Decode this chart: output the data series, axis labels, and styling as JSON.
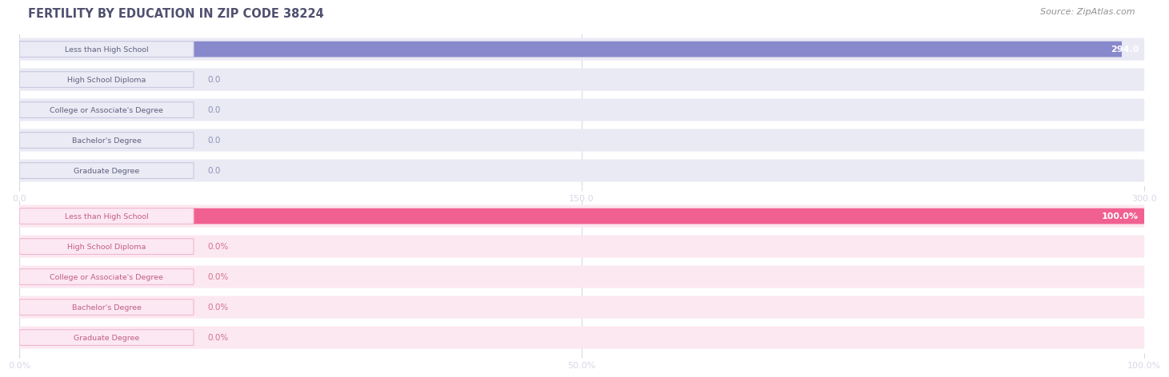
{
  "title": "FERTILITY BY EDUCATION IN ZIP CODE 38224",
  "source": "Source: ZipAtlas.com",
  "categories": [
    "Less than High School",
    "High School Diploma",
    "College or Associate's Degree",
    "Bachelor's Degree",
    "Graduate Degree"
  ],
  "values_count": [
    294.0,
    0.0,
    0.0,
    0.0,
    0.0
  ],
  "values_pct": [
    100.0,
    0.0,
    0.0,
    0.0,
    0.0
  ],
  "xlim_count": [
    0,
    300.0
  ],
  "xlim_pct": [
    0,
    100.0
  ],
  "xticks_count": [
    0.0,
    150.0,
    300.0
  ],
  "xticks_pct": [
    0.0,
    50.0,
    100.0
  ],
  "bar_color_top": "#8888cc",
  "bar_color_bottom": "#f06090",
  "bar_full_color_top": "#eaeaf5",
  "bar_full_color_bottom": "#fce8f0",
  "label_bg_color_top": "#ebebf5",
  "label_bg_color_bottom": "#fce8f2",
  "label_border_color_top": "#c8c8e0",
  "label_border_color_bottom": "#f0b8cc",
  "label_text_color_top": "#606080",
  "label_text_color_bottom": "#c06080",
  "value_color_full": "#ffffff",
  "value_color_zero_top": "#9090b8",
  "value_color_zero_bottom": "#d07090",
  "bg_color": "#ffffff",
  "title_color": "#505070",
  "source_color": "#909090",
  "tick_label_color": "#909090",
  "grid_color": "#d8d8e8"
}
